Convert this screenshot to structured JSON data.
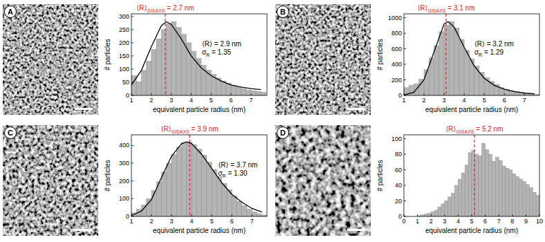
{
  "chart_data": [
    {
      "panel": "A",
      "type": "histogram",
      "xlabel": "equivalent particle radius (nm)",
      "ylabel": "# particles",
      "color": "#b4b4b4",
      "bins": [
        1,
        1.25,
        1.5,
        1.75,
        2,
        2.25,
        2.5,
        2.75,
        3,
        3.25,
        3.5,
        3.75,
        4,
        4.25,
        4.5,
        4.75,
        5,
        5.25,
        5.5,
        5.75,
        6,
        6.25,
        6.5,
        6.75,
        7,
        7.25,
        7.5,
        7.75
      ],
      "counts": [
        75,
        52,
        95,
        130,
        175,
        215,
        250,
        272,
        280,
        258,
        232,
        200,
        168,
        140,
        115,
        96,
        80,
        66,
        55,
        46,
        38,
        31,
        26,
        21,
        18,
        15,
        12
      ],
      "xlim": [
        1,
        7.8
      ],
      "xticks": [
        1,
        2,
        3,
        4,
        5,
        6,
        7
      ],
      "ylim": [
        0,
        310
      ],
      "yticks": [
        0,
        50,
        100,
        150,
        200,
        250,
        300
      ],
      "fit": {
        "type": "line",
        "color": "#000000",
        "x": [
          1,
          1.5,
          2,
          2.5,
          2.75,
          3,
          3.5,
          4,
          4.5,
          5,
          5.5,
          6,
          6.5,
          7,
          7.5
        ],
        "values": [
          40,
          95,
          185,
          265,
          280,
          270,
          215,
          150,
          105,
          75,
          55,
          40,
          32,
          26,
          22
        ]
      },
      "gisaxs": {
        "main": "⟨R⟩",
        "sub": "GISAXS",
        "tail": " = 2.7 nm",
        "value": 2.7,
        "color": "#e0201b"
      },
      "mean_label": "⟨R⟩ = 2.9 nm",
      "sigma_label": {
        "main": "σ",
        "sub": "R",
        "tail": " = 1.35"
      }
    },
    {
      "panel": "B",
      "type": "histogram",
      "xlabel": "equivalent particle radius (nm)",
      "ylabel": "# particles",
      "color": "#b4b4b4",
      "bins": [
        1,
        1.25,
        1.5,
        1.75,
        2,
        2.25,
        2.5,
        2.75,
        3,
        3.25,
        3.5,
        3.75,
        4,
        4.25,
        4.5,
        4.75,
        5,
        5.25,
        5.5,
        5.75,
        6,
        6.25,
        6.5,
        6.75,
        7,
        7.25,
        7.5,
        7.75
      ],
      "counts": [
        100,
        130,
        150,
        210,
        330,
        480,
        640,
        820,
        900,
        950,
        870,
        720,
        580,
        470,
        380,
        300,
        230,
        180,
        140,
        100,
        80,
        60,
        50,
        40,
        30,
        20,
        15
      ],
      "xlim": [
        1,
        7.75
      ],
      "xticks": [
        1,
        2,
        3,
        4,
        5,
        6,
        7
      ],
      "ylim": [
        0,
        1050
      ],
      "yticks": [
        0,
        200,
        400,
        600,
        800,
        1000
      ],
      "fit": {
        "type": "line",
        "color": "#000000",
        "x": [
          1,
          1.5,
          2,
          2.5,
          3,
          3.2,
          3.5,
          4,
          4.5,
          5,
          5.5,
          6,
          6.5,
          7,
          7.5
        ],
        "values": [
          5,
          40,
          200,
          560,
          920,
          950,
          880,
          620,
          380,
          220,
          130,
          80,
          50,
          30,
          20
        ]
      },
      "gisaxs": {
        "main": "⟨R⟩",
        "sub": "GISAXS",
        "tail": " = 3.1 nm",
        "value": 3.1,
        "color": "#e0201b"
      },
      "mean_label": "⟨R⟩ = 3.2 nm",
      "sigma_label": {
        "main": "σ",
        "sub": "R",
        "tail": " = 1.29"
      }
    },
    {
      "panel": "C",
      "type": "histogram",
      "xlabel": "equivalent particle radius (nm)",
      "ylabel": "# particles",
      "color": "#b4b4b4",
      "bins": [
        1,
        1.25,
        1.5,
        1.75,
        2,
        2.25,
        2.5,
        2.75,
        3,
        3.25,
        3.5,
        3.75,
        4,
        4.25,
        4.5,
        4.75,
        5,
        5.25,
        5.5,
        5.75,
        6,
        6.25,
        6.5,
        6.75,
        7,
        7.25,
        7.5,
        7.75
      ],
      "counts": [
        20,
        40,
        65,
        100,
        145,
        195,
        250,
        300,
        350,
        390,
        415,
        420,
        405,
        380,
        345,
        305,
        265,
        225,
        185,
        150,
        115,
        85,
        60,
        40,
        25,
        15,
        8
      ],
      "xlim": [
        1,
        7.75
      ],
      "xticks": [
        1,
        2,
        3,
        4,
        5,
        6,
        7
      ],
      "ylim": [
        0,
        460
      ],
      "yticks": [
        0,
        100,
        200,
        300,
        400
      ],
      "fit": {
        "type": "line",
        "color": "#000000",
        "x": [
          1,
          1.5,
          2,
          2.5,
          3,
          3.5,
          3.75,
          4,
          4.5,
          5,
          5.5,
          6,
          6.5,
          7,
          7.5
        ],
        "values": [
          5,
          30,
          95,
          220,
          340,
          410,
          420,
          410,
          350,
          270,
          190,
          125,
          80,
          45,
          25
        ]
      },
      "gisaxs": {
        "main": "⟨R⟩",
        "sub": "GISAXS",
        "tail": " = 3.9 nm",
        "value": 3.9,
        "color": "#e0201b"
      },
      "mean_label": "⟨R⟩ = 3.7 nm",
      "sigma_label": {
        "main": "σ",
        "sub": "R",
        "tail": " = 1.30"
      }
    },
    {
      "panel": "D",
      "type": "histogram",
      "xlabel": "equivalent particle radius (nm)",
      "ylabel": "# particles",
      "color": "#b4b4b4",
      "bins": [
        1,
        1.25,
        1.5,
        1.75,
        2,
        2.25,
        2.5,
        2.75,
        3,
        3.25,
        3.5,
        3.75,
        4,
        4.25,
        4.5,
        4.75,
        5,
        5.25,
        5.5,
        5.75,
        6,
        6.25,
        6.5,
        6.75,
        7,
        7.25,
        7.5,
        7.75,
        8,
        8.25,
        8.5,
        8.75,
        9,
        9.25,
        9.5,
        9.75,
        10
      ],
      "counts": [
        1,
        2,
        3,
        4,
        6,
        8,
        12,
        16,
        20,
        25,
        30,
        40,
        48,
        56,
        66,
        82,
        85,
        80,
        78,
        94,
        86,
        80,
        71,
        76,
        72,
        65,
        62,
        60,
        55,
        51,
        48,
        45,
        41,
        37,
        31,
        27
      ],
      "xlim": [
        0,
        10
      ],
      "xticks": [
        0,
        1,
        2,
        3,
        4,
        5,
        6,
        7,
        8,
        9,
        10
      ],
      "ylim": [
        0,
        105
      ],
      "yticks": [
        0,
        20,
        40,
        60,
        80,
        100
      ],
      "gisaxs": {
        "main": "⟨R⟩",
        "sub": "GISAXS",
        "tail": " = 5.2 nm",
        "value": 5.2,
        "color": "#e0201b"
      }
    }
  ]
}
